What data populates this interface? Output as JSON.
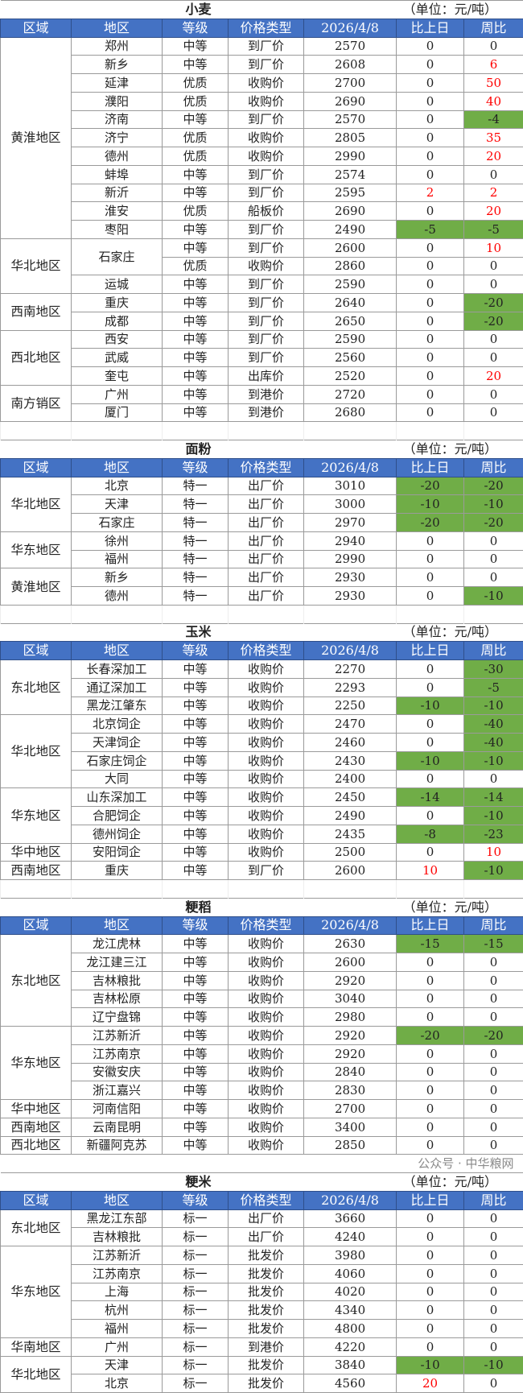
{
  "header_labels": [
    "区域",
    "地区",
    "等级",
    "价格类型",
    "2026/4/8",
    "比上日",
    "周比"
  ],
  "unit": "（单位：元/吨）",
  "colors": {
    "header_bg": "#4472C4",
    "decrease_bg": "#70AD47",
    "increase_text": "#FF0000"
  },
  "watermark": "公众号 · 中华粮网",
  "sections": [
    {
      "title": "小麦",
      "groups": [
        {
          "region": "黄淮地区",
          "rows": [
            [
              "郑州",
              "中等",
              "到厂价",
              "2570",
              "0",
              "0"
            ],
            [
              "新乡",
              "中等",
              "到厂价",
              "2608",
              "0",
              "6"
            ],
            [
              "延津",
              "优质",
              "收购价",
              "2700",
              "0",
              "50"
            ],
            [
              "濮阳",
              "优质",
              "收购价",
              "2690",
              "0",
              "40"
            ],
            [
              "济南",
              "中等",
              "到厂价",
              "2570",
              "0",
              "-4"
            ],
            [
              "济宁",
              "优质",
              "收购价",
              "2805",
              "0",
              "35"
            ],
            [
              "德州",
              "优质",
              "收购价",
              "2990",
              "0",
              "20"
            ],
            [
              "蚌埠",
              "中等",
              "到厂价",
              "2574",
              "0",
              "0"
            ],
            [
              "新沂",
              "中等",
              "到厂价",
              "2595",
              "2",
              "2"
            ],
            [
              "淮安",
              "优质",
              "船板价",
              "2690",
              "0",
              "20"
            ],
            [
              "枣阳",
              "中等",
              "到厂价",
              "2490",
              "-5",
              "-5"
            ]
          ]
        },
        {
          "region": "华北地区",
          "rows": [
            [
              "石家庄",
              "中等",
              "到厂价",
              "2600",
              "0",
              "10"
            ],
            [
              null,
              "优质",
              "收购价",
              "2860",
              "0",
              "0"
            ],
            [
              "运城",
              "中等",
              "到厂价",
              "2590",
              "0",
              "0"
            ]
          ]
        },
        {
          "region": "西南地区",
          "rows": [
            [
              "重庆",
              "中等",
              "到厂价",
              "2640",
              "0",
              "-20"
            ],
            [
              "成都",
              "中等",
              "到厂价",
              "2650",
              "0",
              "-20"
            ]
          ]
        },
        {
          "region": "西北地区",
          "rows": [
            [
              "西安",
              "中等",
              "到厂价",
              "2590",
              "0",
              "0"
            ],
            [
              "武威",
              "中等",
              "到厂价",
              "2560",
              "0",
              "0"
            ],
            [
              "奎屯",
              "中等",
              "出库价",
              "2520",
              "0",
              "20"
            ]
          ]
        },
        {
          "region": "南方销区",
          "rows": [
            [
              "广州",
              "中等",
              "到港价",
              "2720",
              "0",
              "0"
            ],
            [
              "厦门",
              "中等",
              "到港价",
              "2680",
              "0",
              "0"
            ]
          ]
        }
      ]
    },
    {
      "title": "面粉",
      "groups": [
        {
          "region": "华北地区",
          "rows": [
            [
              "北京",
              "特一",
              "出厂价",
              "3010",
              "-20",
              "-20"
            ],
            [
              "天津",
              "特一",
              "出厂价",
              "3000",
              "-10",
              "-10"
            ],
            [
              "石家庄",
              "特一",
              "出厂价",
              "2970",
              "-20",
              "-20"
            ]
          ]
        },
        {
          "region": "华东地区",
          "rows": [
            [
              "徐州",
              "特一",
              "出厂价",
              "2940",
              "0",
              "0"
            ],
            [
              "福州",
              "特一",
              "出厂价",
              "2990",
              "0",
              "0"
            ]
          ]
        },
        {
          "region": "黄淮地区",
          "rows": [
            [
              "新乡",
              "特一",
              "出厂价",
              "2930",
              "0",
              "0"
            ],
            [
              "德州",
              "特一",
              "出厂价",
              "2930",
              "0",
              "-10"
            ]
          ]
        }
      ]
    },
    {
      "title": "玉米",
      "groups": [
        {
          "region": "东北地区",
          "rows": [
            [
              "长春深加工",
              "中等",
              "收购价",
              "2270",
              "0",
              "-30"
            ],
            [
              "通辽深加工",
              "中等",
              "收购价",
              "2293",
              "0",
              "-5"
            ],
            [
              "黑龙江肇东",
              "中等",
              "收购价",
              "2250",
              "-10",
              "-10"
            ]
          ]
        },
        {
          "region": "华北地区",
          "rows": [
            [
              "北京饲企",
              "中等",
              "收购价",
              "2470",
              "0",
              "-40"
            ],
            [
              "天津饲企",
              "中等",
              "收购价",
              "2460",
              "0",
              "-40"
            ],
            [
              "石家庄饲企",
              "中等",
              "收购价",
              "2430",
              "-10",
              "-10"
            ],
            [
              "大同",
              "中等",
              "收购价",
              "2400",
              "0",
              "0"
            ]
          ]
        },
        {
          "region": "华东地区",
          "rows": [
            [
              "山东深加工",
              "中等",
              "收购价",
              "2450",
              "-14",
              "-14"
            ],
            [
              "合肥饲企",
              "中等",
              "收购价",
              "2490",
              "0",
              "-10"
            ],
            [
              "德州饲企",
              "中等",
              "收购价",
              "2435",
              "-8",
              "-23"
            ]
          ]
        },
        {
          "region": "华中地区",
          "rows": [
            [
              "安阳饲企",
              "中等",
              "收购价",
              "2500",
              "0",
              "10"
            ]
          ]
        },
        {
          "region": "西南地区",
          "rows": [
            [
              "重庆",
              "中等",
              "到厂价",
              "2600",
              "10",
              "-10"
            ]
          ]
        }
      ]
    },
    {
      "title": "粳稻",
      "groups": [
        {
          "region": "东北地区",
          "rows": [
            [
              "龙江虎林",
              "中等",
              "收购价",
              "2630",
              "-15",
              "-15"
            ],
            [
              "龙江建三江",
              "中等",
              "收购价",
              "2600",
              "0",
              "0"
            ],
            [
              "吉林粮批",
              "中等",
              "收购价",
              "2920",
              "0",
              "0"
            ],
            [
              "吉林松原",
              "中等",
              "收购价",
              "3040",
              "0",
              "0"
            ],
            [
              "辽宁盘锦",
              "中等",
              "收购价",
              "2980",
              "0",
              "0"
            ]
          ]
        },
        {
          "region": "华东地区",
          "rows": [
            [
              "江苏新沂",
              "中等",
              "收购价",
              "2920",
              "-20",
              "-20"
            ],
            [
              "江苏南京",
              "中等",
              "收购价",
              "2920",
              "0",
              "0"
            ],
            [
              "安徽安庆",
              "中等",
              "收购价",
              "2840",
              "0",
              "0"
            ],
            [
              "浙江嘉兴",
              "中等",
              "收购价",
              "2830",
              "0",
              "0"
            ]
          ]
        },
        {
          "region": "华中地区",
          "rows": [
            [
              "河南信阳",
              "中等",
              "收购价",
              "2700",
              "0",
              "0"
            ]
          ]
        },
        {
          "region": "西南地区",
          "rows": [
            [
              "云南昆明",
              "中等",
              "收购价",
              "3400",
              "0",
              "0"
            ]
          ]
        },
        {
          "region": "西北地区",
          "rows": [
            [
              "新疆阿克苏",
              "中等",
              "收购价",
              "2850",
              "0",
              "0"
            ]
          ]
        }
      ]
    },
    {
      "title": "粳米",
      "groups": [
        {
          "region": "东北地区",
          "rows": [
            [
              "黑龙江东部",
              "标一",
              "出厂价",
              "3660",
              "0",
              "0"
            ],
            [
              "吉林粮批",
              "标一",
              "出厂价",
              "4240",
              "0",
              "0"
            ]
          ]
        },
        {
          "region": "华东地区",
          "rows": [
            [
              "江苏新沂",
              "标一",
              "批发价",
              "3980",
              "0",
              "0"
            ],
            [
              "江苏南京",
              "标一",
              "批发价",
              "4060",
              "0",
              "0"
            ],
            [
              "上海",
              "标一",
              "批发价",
              "4020",
              "0",
              "0"
            ],
            [
              "杭州",
              "标一",
              "批发价",
              "4340",
              "0",
              "0"
            ],
            [
              "福州",
              "标一",
              "批发价",
              "4800",
              "0",
              "0"
            ]
          ]
        },
        {
          "region": "华南地区",
          "rows": [
            [
              "广州",
              "标一",
              "到港价",
              "4220",
              "0",
              "0"
            ]
          ]
        },
        {
          "region": "华北地区",
          "rows": [
            [
              "天津",
              "标一",
              "批发价",
              "3840",
              "-10",
              "-10"
            ],
            [
              "北京",
              "标一",
              "批发价",
              "4560",
              "20",
              "0"
            ]
          ]
        }
      ]
    }
  ]
}
